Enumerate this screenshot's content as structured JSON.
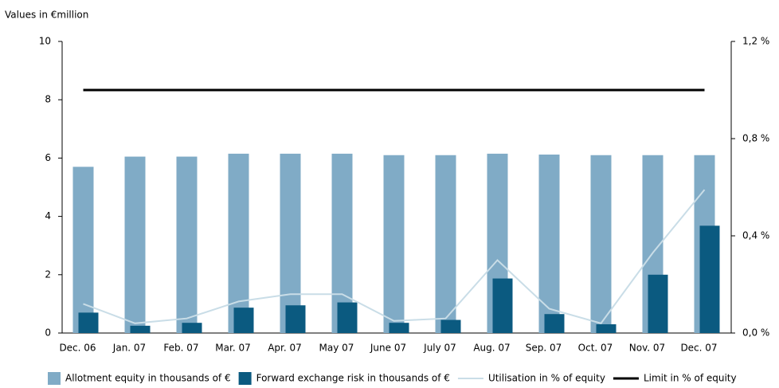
{
  "chart_data": {
    "type": "bar",
    "subtitle": "Values in €million",
    "categories": [
      "Dec. 06",
      "Jan. 07",
      "Feb. 07",
      "Mar. 07",
      "Apr. 07",
      "May 07",
      "June 07",
      "July 07",
      "Aug. 07",
      "Sep. 07",
      "Oct. 07",
      "Nov. 07",
      "Dec. 07"
    ],
    "series": [
      {
        "name": "Allotment equity in thousands of €",
        "type": "bar",
        "color": "#80abc6",
        "values": [
          5.7,
          6.05,
          6.05,
          6.15,
          6.15,
          6.15,
          6.1,
          6.1,
          6.15,
          6.12,
          6.1,
          6.1,
          6.1
        ]
      },
      {
        "name": "Forward exchange risk in thousands of €",
        "type": "bar",
        "color": "#0b5a80",
        "values": [
          0.7,
          0.25,
          0.35,
          0.87,
          0.95,
          1.05,
          0.35,
          0.45,
          1.87,
          0.65,
          0.3,
          2.0,
          3.68
        ]
      },
      {
        "name": "Utilisation in % of equity",
        "type": "line",
        "axis": "y2",
        "color": "#c9dde7",
        "values": [
          0.12,
          0.04,
          0.06,
          0.13,
          0.16,
          0.16,
          0.05,
          0.06,
          0.3,
          0.1,
          0.04,
          0.33,
          0.59
        ]
      },
      {
        "name": "Limit in % of equity",
        "type": "line",
        "axis": "y2",
        "color": "#000000",
        "values": [
          1.0,
          1.0,
          1.0,
          1.0,
          1.0,
          1.0,
          1.0,
          1.0,
          1.0,
          1.0,
          1.0,
          1.0,
          1.0
        ]
      }
    ],
    "ylim": [
      0,
      10
    ],
    "yticks": [
      0,
      2,
      4,
      6,
      8,
      10
    ],
    "y2lim": [
      0,
      1.2
    ],
    "y2ticks": [
      {
        "value": 0,
        "label": "0,0 %"
      },
      {
        "value": 0.4,
        "label": "0,4 %"
      },
      {
        "value": 0.8,
        "label": "0,8 %"
      },
      {
        "value": 1.2,
        "label": "1,2 %"
      }
    ],
    "grid": false,
    "legend": "bottom"
  }
}
